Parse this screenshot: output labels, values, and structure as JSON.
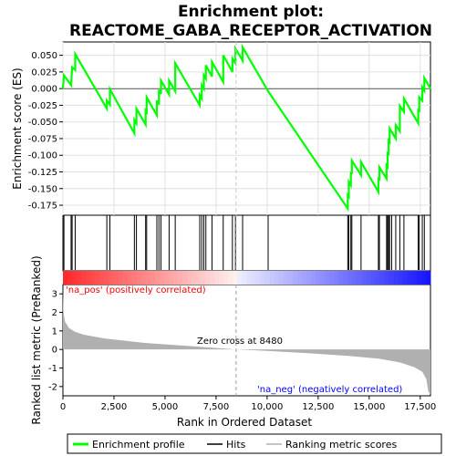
{
  "chart_data": {
    "type": "line",
    "title_line1": "Enrichment plot:",
    "title_line2": "REACTOME_GABA_RECEPTOR_ACTIVATION",
    "top_ylabel": "Enrichment score (ES)",
    "bottom_ylabel": "Ranked list metric (PreRanked)",
    "xlabel": "Rank in Ordered Dataset",
    "xlim": [
      0,
      18000
    ],
    "es_ylim": [
      -0.19,
      0.07
    ],
    "metric_ylim": [
      -2.5,
      3.5
    ],
    "x_ticks": [
      0,
      2500,
      5000,
      7500,
      10000,
      12500,
      15000,
      17500
    ],
    "x_tick_labels": [
      "0",
      "2,500",
      "5,000",
      "7,500",
      "10,000",
      "12,500",
      "15,000",
      "17,500"
    ],
    "es_ticks": [
      0.05,
      0.025,
      0.0,
      -0.025,
      -0.05,
      -0.075,
      -0.1,
      -0.125,
      -0.15,
      -0.175
    ],
    "es_tick_labels": [
      "0.050",
      "0.025",
      "0.000",
      "-0.025",
      "-0.050",
      "-0.075",
      "-0.100",
      "-0.125",
      "-0.150",
      "-0.175"
    ],
    "metric_ticks": [
      3,
      2,
      1,
      0,
      -1,
      -2
    ],
    "metric_tick_labels": [
      "3",
      "2",
      "1",
      "0",
      "-1",
      "-2"
    ],
    "hits": [
      50,
      400,
      450,
      600,
      2150,
      2300,
      3500,
      3600,
      4050,
      4100,
      4600,
      4700,
      4800,
      5200,
      5500,
      6700,
      6800,
      6900,
      7000,
      7300,
      7850,
      8300,
      8450,
      8800,
      10050,
      13950,
      14000,
      14100,
      14150,
      14600,
      15450,
      15500,
      15850,
      15900,
      15950,
      16000,
      16100,
      16300,
      16500,
      16700,
      17400,
      17450,
      17600,
      17700
    ],
    "es_curve": [
      [
        0,
        0.0
      ],
      [
        50,
        0.02
      ],
      [
        400,
        0.005
      ],
      [
        450,
        0.032
      ],
      [
        600,
        0.028
      ],
      [
        601,
        0.052
      ],
      [
        2150,
        -0.03
      ],
      [
        2151,
        -0.018
      ],
      [
        2300,
        -0.024
      ],
      [
        2301,
        -0.001
      ],
      [
        3500,
        -0.067
      ],
      [
        3501,
        -0.047
      ],
      [
        3600,
        -0.052
      ],
      [
        3601,
        -0.03
      ],
      [
        4050,
        -0.054
      ],
      [
        4051,
        -0.033
      ],
      [
        4100,
        -0.035
      ],
      [
        4101,
        -0.013
      ],
      [
        4600,
        -0.04
      ],
      [
        4601,
        -0.018
      ],
      [
        4700,
        -0.024
      ],
      [
        4701,
        -0.002
      ],
      [
        4800,
        -0.008
      ],
      [
        4801,
        0.012
      ],
      [
        5200,
        -0.009
      ],
      [
        5201,
        0.012
      ],
      [
        5500,
        -0.004
      ],
      [
        5501,
        0.038
      ],
      [
        6700,
        -0.025
      ],
      [
        6701,
        -0.01
      ],
      [
        6800,
        -0.015
      ],
      [
        6801,
        0.005
      ],
      [
        6900,
        0.0
      ],
      [
        6901,
        0.02
      ],
      [
        7000,
        0.015
      ],
      [
        7001,
        0.035
      ],
      [
        7300,
        0.018
      ],
      [
        7301,
        0.04
      ],
      [
        7850,
        0.01
      ],
      [
        7851,
        0.05
      ],
      [
        8300,
        0.025
      ],
      [
        8301,
        0.045
      ],
      [
        8450,
        0.038
      ],
      [
        8451,
        0.06
      ],
      [
        8800,
        0.042
      ],
      [
        8801,
        0.062
      ],
      [
        10050,
        -0.004
      ],
      [
        10051,
        -0.004
      ],
      [
        13950,
        -0.18
      ],
      [
        13951,
        -0.16
      ],
      [
        14000,
        -0.162
      ],
      [
        14001,
        -0.14
      ],
      [
        14100,
        -0.145
      ],
      [
        14101,
        -0.125
      ],
      [
        14150,
        -0.128
      ],
      [
        14151,
        -0.108
      ],
      [
        14600,
        -0.13
      ],
      [
        14601,
        -0.11
      ],
      [
        15450,
        -0.155
      ],
      [
        15451,
        -0.135
      ],
      [
        15500,
        -0.136
      ],
      [
        15501,
        -0.118
      ],
      [
        15850,
        -0.135
      ],
      [
        15851,
        -0.115
      ],
      [
        15900,
        -0.117
      ],
      [
        15901,
        -0.097
      ],
      [
        15950,
        -0.098
      ],
      [
        15951,
        -0.078
      ],
      [
        16000,
        -0.08
      ],
      [
        16001,
        -0.06
      ],
      [
        16100,
        -0.065
      ],
      [
        16101,
        -0.065
      ],
      [
        16300,
        -0.075
      ],
      [
        16301,
        -0.055
      ],
      [
        16500,
        -0.064
      ],
      [
        16501,
        -0.026
      ],
      [
        16700,
        -0.035
      ],
      [
        16701,
        -0.015
      ],
      [
        17400,
        -0.052
      ],
      [
        17401,
        -0.032
      ],
      [
        17450,
        -0.033
      ],
      [
        17451,
        -0.013
      ],
      [
        17600,
        -0.018
      ],
      [
        17601,
        0.002
      ],
      [
        17700,
        -0.003
      ],
      [
        17701,
        0.016
      ],
      [
        18000,
        0.0
      ]
    ],
    "metric_profile": [
      [
        0,
        3.3
      ],
      [
        30,
        2.0
      ],
      [
        100,
        1.5
      ],
      [
        300,
        1.15
      ],
      [
        600,
        0.95
      ],
      [
        1000,
        0.8
      ],
      [
        2000,
        0.6
      ],
      [
        4000,
        0.35
      ],
      [
        6000,
        0.2
      ],
      [
        8480,
        0.0
      ],
      [
        10000,
        -0.08
      ],
      [
        12000,
        -0.2
      ],
      [
        14000,
        -0.35
      ],
      [
        15500,
        -0.5
      ],
      [
        16500,
        -0.7
      ],
      [
        17200,
        -0.95
      ],
      [
        17600,
        -1.2
      ],
      [
        17800,
        -1.6
      ],
      [
        17900,
        -2.3
      ],
      [
        18000,
        -2.4
      ]
    ],
    "zero_cross_label": "Zero cross at 8480",
    "zero_cross": 8480,
    "pos_label": "'na_pos' (positively correlated)",
    "neg_label": "'na_neg' (negatively correlated)",
    "colors": {
      "es_line": "#00ff00",
      "hit": "#000000",
      "metric_fill": "#b0b0b0",
      "pos_text": "#ff0000",
      "neg_text": "#0000ff"
    },
    "legend": [
      "Enrichment profile",
      "Hits",
      "Ranking metric scores"
    ]
  }
}
